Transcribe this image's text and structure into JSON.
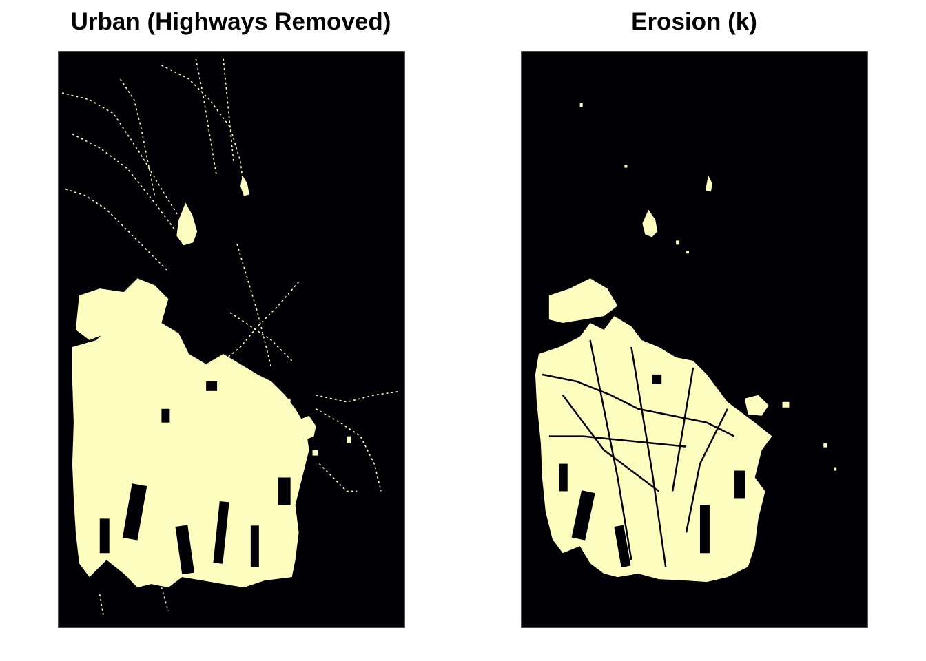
{
  "panels": [
    {
      "title": "Urban (Highways Removed)"
    },
    {
      "title": "Erosion (k)"
    }
  ],
  "colors": {
    "background": "#000004",
    "urban": "#FCFDBF",
    "page": "#ffffff"
  }
}
